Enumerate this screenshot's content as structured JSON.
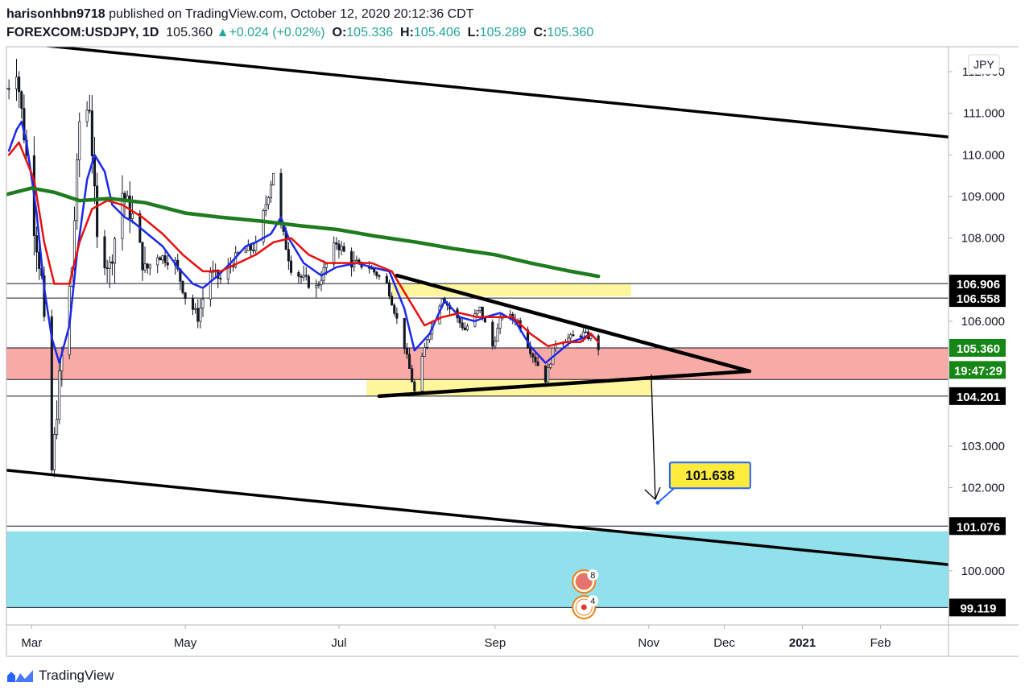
{
  "header": {
    "author": "harisonhbn9718",
    "published_text": " published on TradingView.com, October 12, 2020 20:12:36 CDT",
    "symbol": "FOREXCOM:USDJPY, 1D",
    "last": "105.360",
    "change_arrow": "▲",
    "change": "+0.024 (+0.02%)",
    "o_label": "O:",
    "o": "105.336",
    "h_label": "H:",
    "h": "105.406",
    "l_label": "L:",
    "l": "105.289",
    "c_label": "C:",
    "c": "105.360"
  },
  "footer": {
    "brand": "TradingView",
    "logo_icon": "tradingview-logo-icon"
  },
  "chart_data": {
    "type": "candlestick",
    "currency_label": "JPY",
    "y_ticks": [
      "112.000",
      "111.000",
      "110.000",
      "109.000",
      "108.000",
      "106.000",
      "103.000",
      "102.000",
      "100.000"
    ],
    "y_tick_values": [
      112,
      111,
      110,
      109,
      108,
      106,
      103,
      102,
      100
    ],
    "x_ticks": [
      {
        "label": "Mar",
        "date": "2020-03-01",
        "bold": false
      },
      {
        "label": "May",
        "date": "2020-05-01",
        "bold": false
      },
      {
        "label": "Jul",
        "date": "2020-07-01",
        "bold": false
      },
      {
        "label": "Sep",
        "date": "2020-09-01",
        "bold": false
      },
      {
        "label": "Nov",
        "date": "2020-11-01",
        "bold": false
      },
      {
        "label": "Dec",
        "date": "2020-12-01",
        "bold": false
      },
      {
        "label": "2021",
        "date": "2021-01-01",
        "bold": true
      },
      {
        "label": "Feb",
        "date": "2021-02-01",
        "bold": false
      }
    ],
    "x_range": [
      "2020-02-20",
      "2021-02-28"
    ],
    "y_range": [
      98.7,
      112.6
    ],
    "price_badges": [
      {
        "label": "106.906",
        "value": 106.906,
        "style": "black"
      },
      {
        "label": "106.558",
        "value": 106.558,
        "style": "black"
      },
      {
        "label": "105.360",
        "value": 105.36,
        "style": "green"
      },
      {
        "label": "19:47:29",
        "value": 104.83,
        "style": "green"
      },
      {
        "label": "104.201",
        "value": 104.201,
        "style": "black"
      },
      {
        "label": "101.076",
        "value": 101.076,
        "style": "black"
      },
      {
        "label": "99.119",
        "value": 99.119,
        "style": "black"
      }
    ],
    "horizontal_lines": [
      106.906,
      106.558,
      105.36,
      104.6,
      104.201,
      101.076,
      99.119
    ],
    "zones": [
      {
        "name": "resistance-zone",
        "from": "2020-07-22",
        "to": "2020-10-25",
        "low": 106.6,
        "high": 106.9,
        "color": "#fff59d"
      },
      {
        "name": "support-zone",
        "from": "2020-07-12",
        "to": "2020-11-02",
        "low": 104.2,
        "high": 104.6,
        "color": "#fff59d"
      },
      {
        "name": "red-zone",
        "from": "2020-02-20",
        "to": "2021-02-28",
        "low": 104.6,
        "high": 105.36,
        "color": "#f8aaa6"
      },
      {
        "name": "target-zone",
        "from": "2020-02-20",
        "to": "2021-02-28",
        "low": 99.119,
        "high": 100.95,
        "color": "#91e1ec"
      }
    ],
    "trendlines": [
      {
        "name": "channel-top",
        "from": [
          "2020-02-20",
          112.72
        ],
        "to": [
          "2021-02-28",
          110.43
        ],
        "width": 3.5
      },
      {
        "name": "channel-bottom",
        "from": [
          "2020-02-20",
          102.42
        ],
        "to": [
          "2021-02-28",
          100.15
        ],
        "width": 3.5
      },
      {
        "name": "triangle-upper",
        "from": [
          "2020-07-24",
          107.1
        ],
        "to": [
          "2020-12-11",
          104.8
        ],
        "width": 4.5
      },
      {
        "name": "triangle-lower",
        "from": [
          "2020-07-17",
          104.2
        ],
        "to": [
          "2020-12-11",
          104.8
        ],
        "width": 4.5
      }
    ],
    "projection": {
      "from": [
        "2020-11-02",
        104.72
      ],
      "to": [
        "2020-11-02",
        101.72
      ],
      "target_value": 101.638
    },
    "target_label": "101.638",
    "moving_averages": [
      {
        "name": "ma-blue",
        "color": "#1b29e8",
        "width": 2.5,
        "points": [
          [
            "2020-02-21",
            110.1
          ],
          [
            "2020-02-24",
            110.6
          ],
          [
            "2020-02-26",
            110.8
          ],
          [
            "2020-02-28",
            110.3
          ],
          [
            "2020-03-03",
            108.6
          ],
          [
            "2020-03-06",
            106.8
          ],
          [
            "2020-03-09",
            105.6
          ],
          [
            "2020-03-12",
            105.0
          ],
          [
            "2020-03-16",
            105.9
          ],
          [
            "2020-03-19",
            107.6
          ],
          [
            "2020-03-23",
            109.4
          ],
          [
            "2020-03-26",
            110.0
          ],
          [
            "2020-03-30",
            109.6
          ],
          [
            "2020-04-02",
            108.8
          ],
          [
            "2020-04-07",
            108.5
          ],
          [
            "2020-04-10",
            108.4
          ],
          [
            "2020-04-16",
            108.1
          ],
          [
            "2020-04-22",
            107.8
          ],
          [
            "2020-04-28",
            107.3
          ],
          [
            "2020-05-04",
            106.9
          ],
          [
            "2020-05-08",
            106.8
          ],
          [
            "2020-05-14",
            107.1
          ],
          [
            "2020-05-19",
            107.4
          ],
          [
            "2020-05-25",
            107.8
          ],
          [
            "2020-05-29",
            107.9
          ],
          [
            "2020-06-04",
            108.1
          ],
          [
            "2020-06-08",
            108.5
          ],
          [
            "2020-06-11",
            108.0
          ],
          [
            "2020-06-17",
            107.4
          ],
          [
            "2020-06-24",
            107.1
          ],
          [
            "2020-06-30",
            107.3
          ],
          [
            "2020-07-08",
            107.4
          ],
          [
            "2020-07-14",
            107.3
          ],
          [
            "2020-07-21",
            107.2
          ],
          [
            "2020-07-27",
            106.3
          ],
          [
            "2020-07-31",
            105.3
          ],
          [
            "2020-08-06",
            105.7
          ],
          [
            "2020-08-12",
            106.5
          ],
          [
            "2020-08-18",
            106.1
          ],
          [
            "2020-08-24",
            106.0
          ],
          [
            "2020-08-28",
            106.1
          ],
          [
            "2020-09-03",
            106.2
          ],
          [
            "2020-09-09",
            106.0
          ],
          [
            "2020-09-15",
            105.4
          ],
          [
            "2020-09-21",
            105.0
          ],
          [
            "2020-09-25",
            105.2
          ],
          [
            "2020-10-01",
            105.5
          ],
          [
            "2020-10-06",
            105.6
          ],
          [
            "2020-10-09",
            105.7
          ],
          [
            "2020-10-12",
            105.5
          ]
        ]
      },
      {
        "name": "ma-red",
        "color": "#e8100e",
        "width": 2.5,
        "points": [
          [
            "2020-02-21",
            110.0
          ],
          [
            "2020-02-25",
            110.3
          ],
          [
            "2020-03-02",
            109.4
          ],
          [
            "2020-03-06",
            107.9
          ],
          [
            "2020-03-10",
            106.9
          ],
          [
            "2020-03-16",
            106.9
          ],
          [
            "2020-03-20",
            107.9
          ],
          [
            "2020-03-25",
            108.7
          ],
          [
            "2020-03-31",
            108.9
          ],
          [
            "2020-04-06",
            108.8
          ],
          [
            "2020-04-14",
            108.5
          ],
          [
            "2020-04-22",
            108.1
          ],
          [
            "2020-04-30",
            107.6
          ],
          [
            "2020-05-08",
            107.2
          ],
          [
            "2020-05-15",
            107.2
          ],
          [
            "2020-05-22",
            107.4
          ],
          [
            "2020-05-29",
            107.6
          ],
          [
            "2020-06-05",
            107.9
          ],
          [
            "2020-06-12",
            108.0
          ],
          [
            "2020-06-19",
            107.6
          ],
          [
            "2020-06-26",
            107.4
          ],
          [
            "2020-07-06",
            107.4
          ],
          [
            "2020-07-14",
            107.4
          ],
          [
            "2020-07-22",
            107.2
          ],
          [
            "2020-07-29",
            106.5
          ],
          [
            "2020-08-04",
            105.9
          ],
          [
            "2020-08-11",
            106.1
          ],
          [
            "2020-08-18",
            106.2
          ],
          [
            "2020-08-25",
            106.1
          ],
          [
            "2020-09-01",
            106.1
          ],
          [
            "2020-09-08",
            106.1
          ],
          [
            "2020-09-15",
            105.7
          ],
          [
            "2020-09-22",
            105.4
          ],
          [
            "2020-09-29",
            105.5
          ],
          [
            "2020-10-05",
            105.5
          ],
          [
            "2020-10-09",
            105.7
          ],
          [
            "2020-10-12",
            105.5
          ]
        ]
      },
      {
        "name": "ma-green",
        "color": "#1e7b1e",
        "width": 4.5,
        "points": [
          [
            "2020-02-20",
            109.05
          ],
          [
            "2020-03-01",
            109.2
          ],
          [
            "2020-03-10",
            109.1
          ],
          [
            "2020-03-20",
            108.9
          ],
          [
            "2020-04-01",
            108.95
          ],
          [
            "2020-04-15",
            108.85
          ],
          [
            "2020-05-01",
            108.6
          ],
          [
            "2020-05-15",
            108.5
          ],
          [
            "2020-06-01",
            108.4
          ],
          [
            "2020-06-15",
            108.3
          ],
          [
            "2020-07-01",
            108.2
          ],
          [
            "2020-07-15",
            108.05
          ],
          [
            "2020-08-01",
            107.9
          ],
          [
            "2020-08-15",
            107.75
          ],
          [
            "2020-09-01",
            107.6
          ],
          [
            "2020-09-15",
            107.4
          ],
          [
            "2020-10-01",
            107.2
          ],
          [
            "2020-10-12",
            107.08
          ]
        ]
      }
    ],
    "candles": {
      "start": "2020-02-20",
      "end": "2020-10-12",
      "anchors": [
        [
          "2020-02-20",
          111.6
        ],
        [
          "2020-02-24",
          112.1
        ],
        [
          "2020-02-27",
          110.5
        ],
        [
          "2020-03-02",
          108.3
        ],
        [
          "2020-03-05",
          107.0
        ],
        [
          "2020-03-09",
          102.4
        ],
        [
          "2020-03-12",
          104.6
        ],
        [
          "2020-03-17",
          107.3
        ],
        [
          "2020-03-20",
          110.8
        ],
        [
          "2020-03-24",
          111.2
        ],
        [
          "2020-03-27",
          107.9
        ],
        [
          "2020-04-01",
          107.3
        ],
        [
          "2020-04-06",
          109.1
        ],
        [
          "2020-04-10",
          108.5
        ],
        [
          "2020-04-15",
          107.2
        ],
        [
          "2020-04-20",
          107.6
        ],
        [
          "2020-04-27",
          107.4
        ],
        [
          "2020-05-01",
          106.6
        ],
        [
          "2020-05-06",
          106.1
        ],
        [
          "2020-05-11",
          107.2
        ],
        [
          "2020-05-15",
          107.0
        ],
        [
          "2020-05-22",
          107.6
        ],
        [
          "2020-05-29",
          107.8
        ],
        [
          "2020-06-05",
          109.6
        ],
        [
          "2020-06-08",
          108.3
        ],
        [
          "2020-06-12",
          107.3
        ],
        [
          "2020-06-17",
          107.0
        ],
        [
          "2020-06-22",
          106.8
        ],
        [
          "2020-06-30",
          107.9
        ],
        [
          "2020-07-06",
          107.4
        ],
        [
          "2020-07-13",
          107.3
        ],
        [
          "2020-07-20",
          106.9
        ],
        [
          "2020-07-27",
          105.4
        ],
        [
          "2020-07-31",
          104.3
        ],
        [
          "2020-08-05",
          105.6
        ],
        [
          "2020-08-11",
          106.6
        ],
        [
          "2020-08-14",
          106.3
        ],
        [
          "2020-08-20",
          105.8
        ],
        [
          "2020-08-26",
          106.3
        ],
        [
          "2020-08-31",
          105.4
        ],
        [
          "2020-09-04",
          106.2
        ],
        [
          "2020-09-10",
          106.0
        ],
        [
          "2020-09-15",
          105.3
        ],
        [
          "2020-09-21",
          104.6
        ],
        [
          "2020-09-25",
          105.5
        ],
        [
          "2020-10-01",
          105.6
        ],
        [
          "2020-10-06",
          105.7
        ],
        [
          "2020-10-09",
          105.6
        ],
        [
          "2020-10-12",
          105.36
        ]
      ]
    },
    "event_markers": [
      {
        "name": "us-flag-event-icon",
        "badge": "8",
        "date": "2020-10-05"
      },
      {
        "name": "japan-flag-event-icon",
        "badge": "4",
        "date": "2020-10-05"
      }
    ]
  }
}
